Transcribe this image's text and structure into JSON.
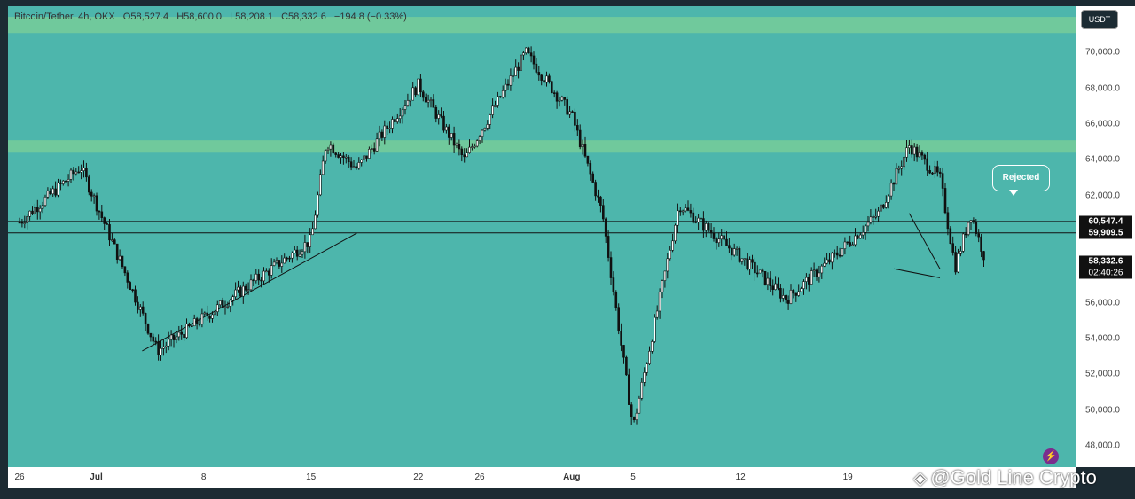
{
  "header": {
    "symbol": "Bitcoin/Tether, 4h, OKX",
    "open": "O58,527.4",
    "high": "H58,600.0",
    "low": "L58,208.1",
    "close": "C58,332.6",
    "change": "−194.8 (−0.33%)"
  },
  "currency_button": "USDT",
  "annotation": "Rejected",
  "watermark": "@Gold Line Crypto",
  "colors": {
    "background": "#4db6ac",
    "resistance_zone": "#70c99c",
    "candle": "#111111",
    "frame": "#1c2b33"
  },
  "chart_data": {
    "type": "candlestick",
    "x_tick_labels": [
      "26",
      "Jul",
      "8",
      "15",
      "22",
      "26",
      "Aug",
      "5",
      "12",
      "19"
    ],
    "y_tick_labels": [
      "48,000.0",
      "50,000.0",
      "52,000.0",
      "54,000.0",
      "56,000.0",
      "58,000.0",
      "62,000.0",
      "64,000.0",
      "66,000.0",
      "68,000.0",
      "70,000.0"
    ],
    "y_ticks": [
      48000,
      50000,
      52000,
      54000,
      56000,
      58000,
      62000,
      64000,
      66000,
      68000,
      70000
    ],
    "ylim": [
      46800,
      72600
    ],
    "price_labels": {
      "upper_level": "60,547.4",
      "lower_level": "59,909.5",
      "last_price": "58,332.6",
      "countdown": "02:40:26"
    },
    "horizontal_levels": [
      60547.4,
      59909.5
    ],
    "resistance_zones": [
      [
        71100,
        72000
      ],
      [
        64400,
        65100
      ]
    ],
    "trendlines": [
      {
        "from": [
          "Jul 4",
          53300
        ],
        "to": [
          "Jul 18",
          59900
        ]
      },
      {
        "from": [
          "Aug 23",
          61000
        ],
        "to": [
          "Aug 25",
          57900
        ]
      },
      {
        "from": [
          "Aug 22",
          57900
        ],
        "to": [
          "Aug 25",
          57400
        ]
      }
    ],
    "key_points": [
      {
        "date": "Jun 26",
        "price": 60500
      },
      {
        "date": "Jun 30",
        "price": 63600
      },
      {
        "date": "Jul 5",
        "price": 53300
      },
      {
        "date": "Jul 15",
        "price": 59500
      },
      {
        "date": "Jul 16",
        "price": 65000
      },
      {
        "date": "Jul 18",
        "price": 63500
      },
      {
        "date": "Jul 22",
        "price": 68200
      },
      {
        "date": "Jul 25",
        "price": 64000
      },
      {
        "date": "Jul 29",
        "price": 70000
      },
      {
        "date": "Aug 1",
        "price": 66500
      },
      {
        "date": "Aug 3",
        "price": 61000
      },
      {
        "date": "Aug 5",
        "price": 49000
      },
      {
        "date": "Aug 8",
        "price": 61500
      },
      {
        "date": "Aug 13",
        "price": 57800
      },
      {
        "date": "Aug 15",
        "price": 56200
      },
      {
        "date": "Aug 18",
        "price": 58500
      },
      {
        "date": "Aug 21",
        "price": 61000
      },
      {
        "date": "Aug 23",
        "price": 64800
      },
      {
        "date": "Aug 25",
        "price": 63000
      },
      {
        "date": "Aug 26",
        "price": 58000
      },
      {
        "date": "Aug 27",
        "price": 61000
      },
      {
        "date": "Aug 28",
        "price": 58332.6
      }
    ]
  }
}
